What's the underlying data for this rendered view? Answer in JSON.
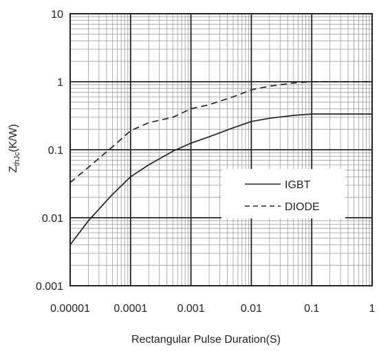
{
  "chart_data": {
    "type": "line",
    "title": "",
    "xlabel": "Rectangular Pulse Duration(S)",
    "ylabel": {
      "main": "Z",
      "sub": "thJc",
      "tail": "(K/W)"
    },
    "x_scale": "log",
    "y_scale": "log",
    "xlim": [
      1e-05,
      1
    ],
    "ylim": [
      0.001,
      10
    ],
    "x_tick_labels": [
      "0.00001",
      "0.0001",
      "0.001",
      "0.01",
      "0.1",
      "1"
    ],
    "y_tick_labels": [
      "10",
      "1",
      "0.1",
      "0.01",
      "0.001"
    ],
    "grid": true,
    "legend_position": "right",
    "series": [
      {
        "name": "IGBT",
        "style": "solid",
        "color": "#222222",
        "points": [
          [
            1e-05,
            0.004
          ],
          [
            2e-05,
            0.009
          ],
          [
            5e-05,
            0.022
          ],
          [
            0.0001,
            0.04
          ],
          [
            0.0002,
            0.06
          ],
          [
            0.0005,
            0.095
          ],
          [
            0.001,
            0.125
          ],
          [
            0.002,
            0.155
          ],
          [
            0.005,
            0.21
          ],
          [
            0.01,
            0.26
          ],
          [
            0.02,
            0.29
          ],
          [
            0.05,
            0.32
          ],
          [
            0.1,
            0.335
          ],
          [
            0.2,
            0.335
          ],
          [
            1,
            0.335
          ]
        ]
      },
      {
        "name": "DIODE",
        "style": "dashed",
        "color": "#222222",
        "points": [
          [
            1e-05,
            0.033
          ],
          [
            2e-05,
            0.055
          ],
          [
            5e-05,
            0.11
          ],
          [
            0.0001,
            0.19
          ],
          [
            0.0002,
            0.25
          ],
          [
            0.0005,
            0.3
          ],
          [
            0.001,
            0.4
          ],
          [
            0.002,
            0.46
          ],
          [
            0.005,
            0.6
          ],
          [
            0.01,
            0.76
          ],
          [
            0.02,
            0.86
          ],
          [
            0.05,
            0.96
          ],
          [
            0.1,
            1.0
          ],
          [
            0.2,
            1.0
          ],
          [
            1,
            1.0
          ]
        ]
      }
    ]
  }
}
